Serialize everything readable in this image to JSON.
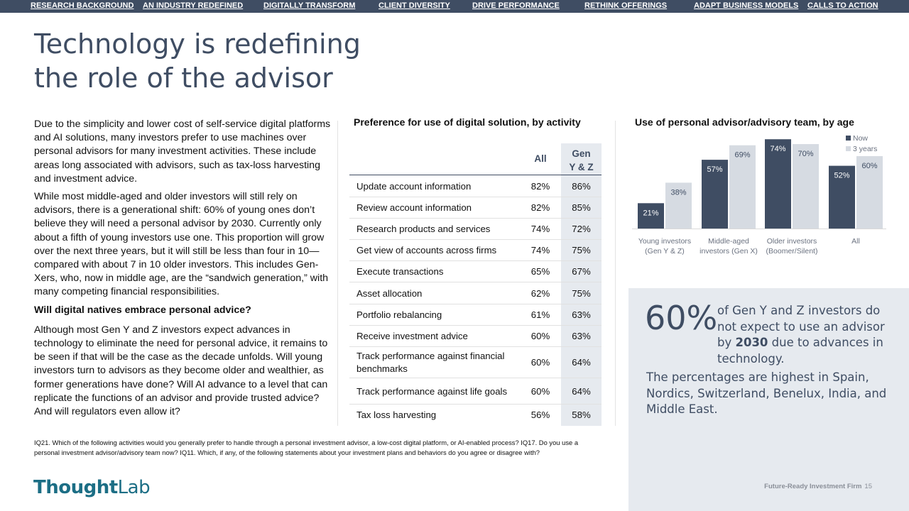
{
  "nav": [
    "RESEARCH BACKGROUND",
    "AN INDUSTRY REDEFINED",
    "DIGITALLY TRANSFORM",
    "CLIENT DIVERSITY",
    "DRIVE PERFORMANCE",
    "RETHINK OFFERINGS",
    "ADAPT BUSINESS MODELS",
    "CALLS TO ACTION"
  ],
  "title": {
    "line1": "Technology is redefining",
    "line2": "the role of the advisor"
  },
  "body": {
    "p1": "Due to the simplicity and lower cost of self-service digital platforms and AI solutions, many investors prefer to use machines over personal advisors for many investment activities. These include areas long associated with advisors, such as tax-loss harvesting and investment advice.",
    "p2": "While most middle-aged and older investors will still rely on advisors, there is a generational shift: 60% of young ones don’t believe they will need a personal advisor by 2030. Currently only about a fifth of young investors use one. This proportion will grow over the next three years, but it will still be less than four in 10—compared with about 7 in 10 older investors. This includes Gen-Xers, who, now in middle age, are the “sandwich generation,” with many competing financial responsibilities.",
    "subhead": "Will digital natives embrace personal advice?",
    "p3": "Although most Gen Y and Z investors expect advances in technology to eliminate the need for personal advice, it remains to be seen if that will be the case as the decade unfolds. Will young investors turn to advisors as they become older and wealthier, as former generations have done? Will AI advance to a level that can replicate the functions of an advisor and provide trusted advice? And will regulators even allow it?"
  },
  "table": {
    "title": "Preference for use of digital solution, by activity",
    "col_all": "All",
    "col_gen_line1": "Gen",
    "col_gen_line2": "Y & Z",
    "rows": [
      {
        "label": "Update account information",
        "all": "82%",
        "gen": "86%"
      },
      {
        "label": "Review  account information",
        "all": "82%",
        "gen": "85%"
      },
      {
        "label": "Research products and services",
        "all": "74%",
        "gen": "72%"
      },
      {
        "label": "Get view of accounts across firms",
        "all": "74%",
        "gen": "75%"
      },
      {
        "label": "Execute transactions",
        "all": "65%",
        "gen": "67%"
      },
      {
        "label": "Asset allocation",
        "all": "62%",
        "gen": "75%"
      },
      {
        "label": "Portfolio rebalancing",
        "all": "61%",
        "gen": "63%"
      },
      {
        "label": "Receive investment advice",
        "all": "60%",
        "gen": "63%"
      },
      {
        "label": "Track performance against financial benchmarks",
        "all": "60%",
        "gen": "64%"
      },
      {
        "label": "Track performance against life goals",
        "all": "60%",
        "gen": "64%"
      },
      {
        "label": "Tax loss harvesting",
        "all": "56%",
        "gen": "58%"
      }
    ]
  },
  "chart_data": {
    "type": "bar",
    "title": "Use of personal advisor/advisory team, by age",
    "categories": [
      [
        "Young investors",
        "(Gen Y & Z)"
      ],
      [
        "Middle-aged",
        "investors (Gen X)"
      ],
      [
        "Older investors",
        "(Boomer/Silent)"
      ],
      [
        "All"
      ]
    ],
    "series": [
      {
        "name": "Now",
        "values": [
          21,
          57,
          74,
          52
        ],
        "color": "#3f4d63"
      },
      {
        "name": "3 years",
        "values": [
          38,
          69,
          70,
          60
        ],
        "color": "#d6dbe2"
      }
    ],
    "value_suffix": "%",
    "ylim": [
      0,
      80
    ],
    "legend_position": "top-right",
    "grid": false
  },
  "callout": {
    "big_number": "60%",
    "desc_pre": "of Gen Y and Z investors do not expect to use an advisor by ",
    "desc_bold": "2030",
    "desc_post": " due to advances in technology.",
    "note": "The percentages are highest in Spain, Nordics, Switzerland, Benelux, India, and Middle East."
  },
  "footnote": "IQ21. Which of the following activities would you generally prefer to handle through a personal investment advisor, a low-cost digital platform, or AI-enabled process? IQ17. Do you use a personal investment advisor/advisory team now? IQ11. Which, if any, of the following statements about your investment plans and behaviors do you agree or disagree with?",
  "logo": {
    "part1": "Thought",
    "part2": "Lab"
  },
  "footer": {
    "publication": "Future-Ready Investment Firm",
    "page": "15"
  },
  "colors": {
    "navy": "#3f4d63",
    "light": "#d6dbe2",
    "callout_bg": "#e6eaef",
    "logo": "#1c6e85"
  }
}
